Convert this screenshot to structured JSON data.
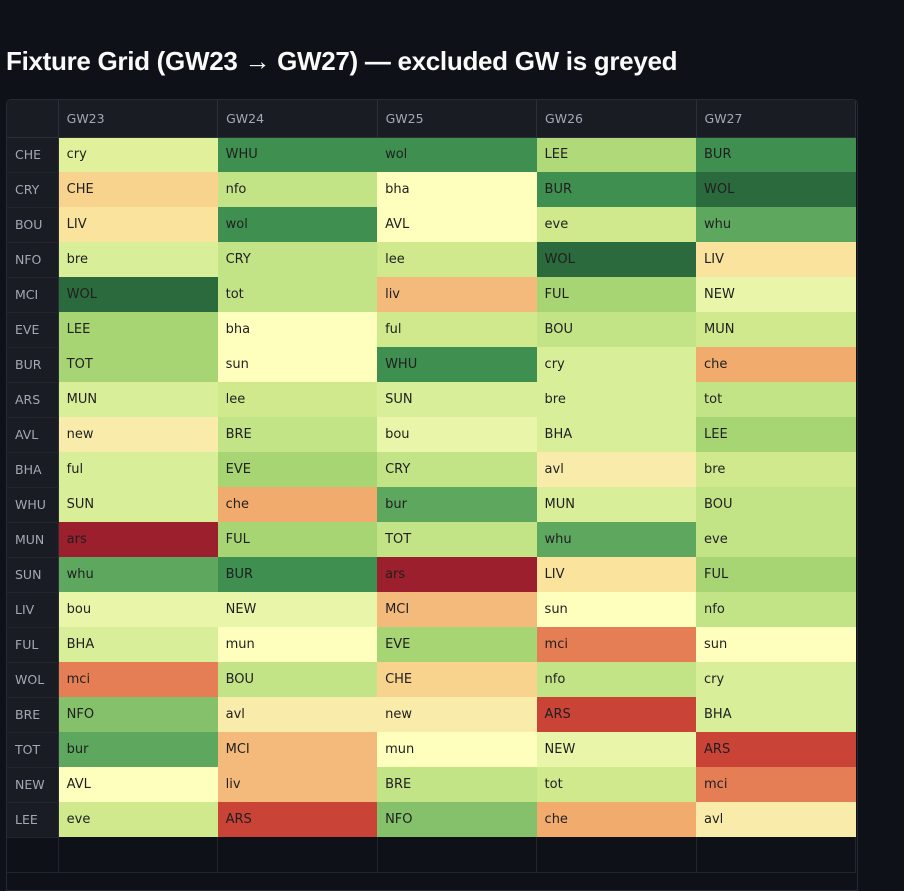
{
  "title": "Fixture Grid (GW23 → GW27) — excluded GW is greyed",
  "columns": [
    "GW23",
    "GW24",
    "GW25",
    "GW26",
    "GW27"
  ],
  "rows": [
    {
      "team": "CHE",
      "cells": [
        {
          "text": "cry",
          "color": "#e1f19b"
        },
        {
          "text": "WHU",
          "color": "#3f8f50"
        },
        {
          "text": "wol",
          "color": "#3f8f50"
        },
        {
          "text": "LEE",
          "color": "#b0d97a"
        },
        {
          "text": "BUR",
          "color": "#3f8f50"
        }
      ]
    },
    {
      "team": "CRY",
      "cells": [
        {
          "text": "CHE",
          "color": "#f8d38e"
        },
        {
          "text": "nfo",
          "color": "#c3e387"
        },
        {
          "text": "bha",
          "color": "#fefebd"
        },
        {
          "text": "BUR",
          "color": "#3f8f50"
        },
        {
          "text": "WOL",
          "color": "#2b6a3d"
        }
      ]
    },
    {
      "team": "BOU",
      "cells": [
        {
          "text": "LIV",
          "color": "#f9e39d"
        },
        {
          "text": "wol",
          "color": "#3f8f50"
        },
        {
          "text": "AVL",
          "color": "#fefebd"
        },
        {
          "text": "eve",
          "color": "#d0e98c"
        },
        {
          "text": "whu",
          "color": "#5ea75f"
        }
      ]
    },
    {
      "team": "NFO",
      "cells": [
        {
          "text": "bre",
          "color": "#d9ee98"
        },
        {
          "text": "CRY",
          "color": "#c3e387"
        },
        {
          "text": "lee",
          "color": "#d0e98c"
        },
        {
          "text": "WOL",
          "color": "#2b6a3d"
        },
        {
          "text": "LIV",
          "color": "#f9e39d"
        }
      ]
    },
    {
      "team": "MCI",
      "cells": [
        {
          "text": "WOL",
          "color": "#2b6a3d"
        },
        {
          "text": "tot",
          "color": "#c3e387"
        },
        {
          "text": "liv",
          "color": "#f4ba7c"
        },
        {
          "text": "FUL",
          "color": "#a7d574"
        },
        {
          "text": "NEW",
          "color": "#e9f5a8"
        }
      ]
    },
    {
      "team": "EVE",
      "cells": [
        {
          "text": "LEE",
          "color": "#a7d574"
        },
        {
          "text": "bha",
          "color": "#fefebd"
        },
        {
          "text": "ful",
          "color": "#d0e98c"
        },
        {
          "text": "BOU",
          "color": "#c3e387"
        },
        {
          "text": "MUN",
          "color": "#d0e98c"
        }
      ]
    },
    {
      "team": "BUR",
      "cells": [
        {
          "text": "TOT",
          "color": "#a7d574"
        },
        {
          "text": "sun",
          "color": "#fefebd"
        },
        {
          "text": "WHU",
          "color": "#3f8f50"
        },
        {
          "text": "cry",
          "color": "#d9ee98"
        },
        {
          "text": "che",
          "color": "#f0ab6d"
        }
      ]
    },
    {
      "team": "ARS",
      "cells": [
        {
          "text": "MUN",
          "color": "#d9ee98"
        },
        {
          "text": "lee",
          "color": "#d0e98c"
        },
        {
          "text": "SUN",
          "color": "#d9ee98"
        },
        {
          "text": "bre",
          "color": "#d9ee98"
        },
        {
          "text": "tot",
          "color": "#c3e387"
        }
      ]
    },
    {
      "team": "AVL",
      "cells": [
        {
          "text": "new",
          "color": "#f9ecaa"
        },
        {
          "text": "BRE",
          "color": "#c3e387"
        },
        {
          "text": "bou",
          "color": "#e9f5a8"
        },
        {
          "text": "BHA",
          "color": "#d9ee98"
        },
        {
          "text": "LEE",
          "color": "#a7d574"
        }
      ]
    },
    {
      "team": "BHA",
      "cells": [
        {
          "text": "ful",
          "color": "#d9ee98"
        },
        {
          "text": "EVE",
          "color": "#a7d574"
        },
        {
          "text": "CRY",
          "color": "#c3e387"
        },
        {
          "text": "avl",
          "color": "#f9ecaa"
        },
        {
          "text": "bre",
          "color": "#d0e98c"
        }
      ]
    },
    {
      "team": "WHU",
      "cells": [
        {
          "text": "SUN",
          "color": "#d9ee98"
        },
        {
          "text": "che",
          "color": "#f0ab6d"
        },
        {
          "text": "bur",
          "color": "#5ea75f"
        },
        {
          "text": "MUN",
          "color": "#d9ee98"
        },
        {
          "text": "BOU",
          "color": "#c3e387"
        }
      ]
    },
    {
      "team": "MUN",
      "cells": [
        {
          "text": "ars",
          "color": "#9c1f2d"
        },
        {
          "text": "FUL",
          "color": "#a7d574"
        },
        {
          "text": "TOT",
          "color": "#c3e387"
        },
        {
          "text": "whu",
          "color": "#5ea75f"
        },
        {
          "text": "eve",
          "color": "#c3e387"
        }
      ]
    },
    {
      "team": "SUN",
      "cells": [
        {
          "text": "whu",
          "color": "#5ea75f"
        },
        {
          "text": "BUR",
          "color": "#3f8f50"
        },
        {
          "text": "ars",
          "color": "#9c1f2d"
        },
        {
          "text": "LIV",
          "color": "#f9e39d"
        },
        {
          "text": "FUL",
          "color": "#a7d574"
        }
      ]
    },
    {
      "team": "LIV",
      "cells": [
        {
          "text": "bou",
          "color": "#e9f5a8"
        },
        {
          "text": "NEW",
          "color": "#e9f5a8"
        },
        {
          "text": "MCI",
          "color": "#f4ba7c"
        },
        {
          "text": "sun",
          "color": "#fefebd"
        },
        {
          "text": "nfo",
          "color": "#c3e387"
        }
      ]
    },
    {
      "team": "FUL",
      "cells": [
        {
          "text": "BHA",
          "color": "#d9ee98"
        },
        {
          "text": "mun",
          "color": "#fefebd"
        },
        {
          "text": "EVE",
          "color": "#a7d574"
        },
        {
          "text": "mci",
          "color": "#e57e55"
        },
        {
          "text": "sun",
          "color": "#fefebd"
        }
      ]
    },
    {
      "team": "WOL",
      "cells": [
        {
          "text": "mci",
          "color": "#e57e55"
        },
        {
          "text": "BOU",
          "color": "#c3e387"
        },
        {
          "text": "CHE",
          "color": "#f8d38e"
        },
        {
          "text": "nfo",
          "color": "#c3e387"
        },
        {
          "text": "cry",
          "color": "#d9ee98"
        }
      ]
    },
    {
      "team": "BRE",
      "cells": [
        {
          "text": "NFO",
          "color": "#85c06a"
        },
        {
          "text": "avl",
          "color": "#f9ecaa"
        },
        {
          "text": "new",
          "color": "#f9ecaa"
        },
        {
          "text": "ARS",
          "color": "#ca4337"
        },
        {
          "text": "BHA",
          "color": "#d9ee98"
        }
      ]
    },
    {
      "team": "TOT",
      "cells": [
        {
          "text": "bur",
          "color": "#5ea75f"
        },
        {
          "text": "MCI",
          "color": "#f4ba7c"
        },
        {
          "text": "mun",
          "color": "#fefebd"
        },
        {
          "text": "NEW",
          "color": "#e9f5a8"
        },
        {
          "text": "ARS",
          "color": "#ca4337"
        }
      ]
    },
    {
      "team": "NEW",
      "cells": [
        {
          "text": "AVL",
          "color": "#fefebd"
        },
        {
          "text": "liv",
          "color": "#f4ba7c"
        },
        {
          "text": "BRE",
          "color": "#c3e387"
        },
        {
          "text": "tot",
          "color": "#d0e98c"
        },
        {
          "text": "mci",
          "color": "#e57e55"
        }
      ]
    },
    {
      "team": "LEE",
      "cells": [
        {
          "text": "eve",
          "color": "#d0e98c"
        },
        {
          "text": "ARS",
          "color": "#ca4337"
        },
        {
          "text": "NFO",
          "color": "#85c06a"
        },
        {
          "text": "che",
          "color": "#f0ab6d"
        },
        {
          "text": "avl",
          "color": "#f9ecaa"
        }
      ]
    }
  ]
}
